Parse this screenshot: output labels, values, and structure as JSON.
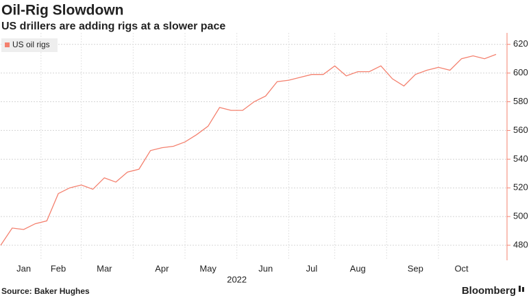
{
  "chart_data": {
    "type": "line",
    "title": "Oil-Rig Slowdown",
    "subtitle": "US drillers are adding rigs at a slower pace",
    "source": "Source: Baker Hughes",
    "brand": "Bloomberg",
    "xlabel": "2022",
    "categories": [
      null,
      null,
      "Jan",
      null,
      null,
      "Feb",
      null,
      null,
      null,
      "Mar",
      null,
      null,
      null,
      null,
      "Apr",
      null,
      null,
      null,
      "May",
      null,
      null,
      null,
      null,
      "Jun",
      null,
      null,
      null,
      "Jul",
      null,
      null,
      null,
      "Aug",
      null,
      null,
      null,
      null,
      "Sep",
      null,
      null,
      null,
      "Oct",
      null,
      null,
      null
    ],
    "series": [
      {
        "name": "US oil rigs",
        "color": "#f4806e",
        "values": [
          480,
          492,
          491,
          495,
          497,
          516,
          520,
          522,
          519,
          527,
          524,
          531,
          533,
          546,
          548,
          549,
          552,
          557,
          563,
          576,
          574,
          574,
          580,
          584,
          594,
          595,
          597,
          599,
          599,
          605,
          598,
          601,
          601,
          605,
          596,
          591,
          599,
          602,
          604,
          602,
          610,
          612,
          610,
          613
        ]
      }
    ],
    "ylim": [
      469.5,
      628
    ],
    "yticks": [
      480,
      500,
      520,
      540,
      560,
      580,
      600,
      620
    ],
    "y_axis_side": "right",
    "grid": true,
    "legend": "top-left"
  }
}
